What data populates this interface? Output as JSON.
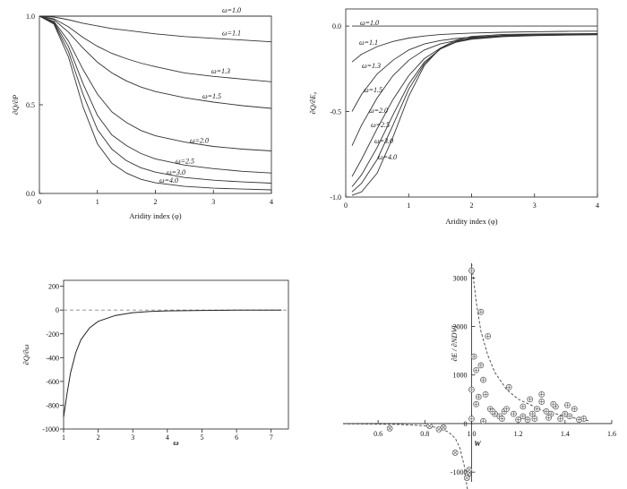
{
  "chart_data": [
    {
      "type": "line",
      "xlabel": "Aridity index (φ)",
      "ylabel": "∂Q/∂P",
      "xlim": [
        0,
        4
      ],
      "ylim": [
        0,
        1.0
      ],
      "x_ticks": [
        "0",
        "1",
        "2",
        "3",
        "4"
      ],
      "y_ticks": [
        "0.0",
        "0.5",
        "1.0"
      ],
      "x": [
        0,
        0.25,
        0.5,
        0.75,
        1.0,
        1.25,
        1.5,
        1.75,
        2.0,
        2.5,
        3.0,
        3.5,
        4.0
      ],
      "series": [
        {
          "name": "ω=1.0",
          "values": [
            1.0,
            1.0,
            1.0,
            1.0,
            1.0,
            1.0,
            1.0,
            1.0,
            1.0,
            1.0,
            1.0,
            1.0,
            1.0
          ]
        },
        {
          "name": "ω=1.1",
          "values": [
            1.0,
            0.995,
            0.98,
            0.96,
            0.945,
            0.93,
            0.92,
            0.91,
            0.9,
            0.885,
            0.875,
            0.865,
            0.855
          ]
        },
        {
          "name": "ω=1.3",
          "values": [
            1.0,
            0.985,
            0.94,
            0.88,
            0.83,
            0.79,
            0.76,
            0.735,
            0.715,
            0.68,
            0.66,
            0.645,
            0.63
          ]
        },
        {
          "name": "ω=1.5",
          "values": [
            1.0,
            0.98,
            0.91,
            0.82,
            0.74,
            0.68,
            0.635,
            0.6,
            0.575,
            0.54,
            0.515,
            0.495,
            0.48
          ]
        },
        {
          "name": "ω=2.0",
          "values": [
            1.0,
            0.97,
            0.86,
            0.7,
            0.56,
            0.46,
            0.4,
            0.355,
            0.325,
            0.29,
            0.265,
            0.25,
            0.24
          ]
        },
        {
          "name": "ω=2.5",
          "values": [
            1.0,
            0.965,
            0.83,
            0.62,
            0.44,
            0.33,
            0.27,
            0.225,
            0.195,
            0.16,
            0.14,
            0.125,
            0.115
          ]
        },
        {
          "name": "ω=3.0",
          "values": [
            1.0,
            0.96,
            0.8,
            0.56,
            0.36,
            0.25,
            0.185,
            0.145,
            0.12,
            0.09,
            0.075,
            0.065,
            0.058
          ]
        },
        {
          "name": "ω=4.0",
          "values": [
            1.0,
            0.955,
            0.77,
            0.49,
            0.28,
            0.17,
            0.115,
            0.08,
            0.06,
            0.04,
            0.03,
            0.025,
            0.02
          ]
        }
      ]
    },
    {
      "type": "line",
      "xlabel": "Aridity index (φ)",
      "ylabel": "∂Q/∂E₀",
      "xlim": [
        0,
        4
      ],
      "ylim": [
        -1.0,
        0.1
      ],
      "x_ticks": [
        "0",
        "1",
        "2",
        "3",
        "4"
      ],
      "y_ticks": [
        "-1.0",
        "-0.5",
        "0.0"
      ],
      "x": [
        0.1,
        0.25,
        0.5,
        0.75,
        1.0,
        1.25,
        1.5,
        1.75,
        2.0,
        2.5,
        3.0,
        3.5,
        4.0
      ],
      "series": [
        {
          "name": "ω=1.0",
          "values": [
            0,
            0,
            0,
            0,
            0,
            0,
            0,
            0,
            0,
            0,
            0,
            0,
            0
          ]
        },
        {
          "name": "ω=1.1",
          "values": [
            -0.21,
            -0.165,
            -0.12,
            -0.09,
            -0.07,
            -0.058,
            -0.05,
            -0.045,
            -0.041,
            -0.036,
            -0.033,
            -0.031,
            -0.03
          ]
        },
        {
          "name": "ω=1.3",
          "values": [
            -0.5,
            -0.4,
            -0.28,
            -0.2,
            -0.14,
            -0.105,
            -0.085,
            -0.073,
            -0.065,
            -0.056,
            -0.051,
            -0.048,
            -0.046
          ]
        },
        {
          "name": "ω=1.5",
          "values": [
            -0.7,
            -0.58,
            -0.42,
            -0.29,
            -0.2,
            -0.14,
            -0.105,
            -0.085,
            -0.073,
            -0.061,
            -0.055,
            -0.052,
            -0.05
          ]
        },
        {
          "name": "ω=2.0",
          "values": [
            -0.88,
            -0.78,
            -0.6,
            -0.43,
            -0.29,
            -0.19,
            -0.13,
            -0.095,
            -0.077,
            -0.062,
            -0.056,
            -0.053,
            -0.051
          ]
        },
        {
          "name": "ω=2.5",
          "values": [
            -0.94,
            -0.87,
            -0.71,
            -0.52,
            -0.34,
            -0.21,
            -0.135,
            -0.095,
            -0.073,
            -0.058,
            -0.053,
            -0.05,
            -0.049
          ]
        },
        {
          "name": "ω=3.0",
          "values": [
            -0.97,
            -0.92,
            -0.78,
            -0.58,
            -0.37,
            -0.22,
            -0.135,
            -0.09,
            -0.068,
            -0.054,
            -0.05,
            -0.048,
            -0.047
          ]
        },
        {
          "name": "ω=4.0",
          "values": [
            -0.99,
            -0.97,
            -0.86,
            -0.65,
            -0.41,
            -0.23,
            -0.13,
            -0.083,
            -0.061,
            -0.049,
            -0.046,
            -0.045,
            -0.044
          ]
        }
      ]
    },
    {
      "type": "line",
      "xlabel": "ω",
      "ylabel": "∂Q/∂ω",
      "xlim": [
        1,
        7.5
      ],
      "ylim": [
        -1000,
        250
      ],
      "x_ticks": [
        "1",
        "2",
        "3",
        "4",
        "5",
        "6",
        "7"
      ],
      "y_ticks": [
        "-1000",
        "-800",
        "-600",
        "-400",
        "-200",
        "0",
        "200"
      ],
      "zero_line": "dashed",
      "x": [
        1.0,
        1.1,
        1.2,
        1.35,
        1.5,
        1.75,
        2.0,
        2.5,
        3.0,
        3.5,
        4.0,
        5.0,
        6.0,
        7.3
      ],
      "values": [
        -900,
        -700,
        -530,
        -360,
        -250,
        -150,
        -95,
        -45,
        -22,
        -12,
        -7,
        -3,
        -1,
        0
      ]
    },
    {
      "type": "scatter",
      "xlabel": "W",
      "ylabel": "∂E / ∂NDVI",
      "xlim": [
        0.45,
        1.6
      ],
      "ylim": [
        -1200,
        3300
      ],
      "x_ticks": [
        "0.6",
        "0.8",
        "1.0",
        "1.2",
        "1.4",
        "1.6"
      ],
      "y_ticks": [
        "-1000",
        "0",
        "1000",
        "2000",
        "3000"
      ],
      "points": [
        [
          1.0,
          3150
        ],
        [
          1.04,
          2300
        ],
        [
          1.01,
          1380
        ],
        [
          1.02,
          1100
        ],
        [
          1.04,
          1200
        ],
        [
          1.07,
          1800
        ],
        [
          1.05,
          900
        ],
        [
          1.06,
          600
        ],
        [
          1.02,
          400
        ],
        [
          1.08,
          300
        ],
        [
          1.1,
          200
        ],
        [
          1.0,
          700
        ],
        [
          1.12,
          150
        ],
        [
          1.14,
          250
        ],
        [
          1.16,
          750
        ],
        [
          1.13,
          100
        ],
        [
          1.18,
          200
        ],
        [
          1.2,
          80
        ],
        [
          1.15,
          300
        ],
        [
          1.22,
          150
        ],
        [
          1.24,
          80
        ],
        [
          1.26,
          200
        ],
        [
          1.28,
          300
        ],
        [
          1.3,
          450
        ],
        [
          1.32,
          250
        ],
        [
          1.34,
          200
        ],
        [
          1.36,
          350
        ],
        [
          1.38,
          100
        ],
        [
          1.4,
          200
        ],
        [
          1.42,
          150
        ],
        [
          1.44,
          300
        ],
        [
          1.46,
          80
        ],
        [
          1.48,
          100
        ],
        [
          1.3,
          600
        ],
        [
          1.35,
          400
        ],
        [
          1.25,
          500
        ],
        [
          1.22,
          350
        ],
        [
          1.27,
          100
        ],
        [
          1.33,
          120
        ],
        [
          1.41,
          380
        ],
        [
          1.03,
          550
        ],
        [
          1.09,
          250
        ],
        [
          1.0,
          100
        ],
        [
          1.05,
          50
        ],
        [
          0.65,
          -100
        ],
        [
          0.82,
          -50
        ],
        [
          0.86,
          -120
        ],
        [
          0.88,
          -80
        ],
        [
          0.93,
          -600
        ],
        [
          0.99,
          -950
        ],
        [
          0.985,
          -1050
        ],
        [
          0.98,
          -1120
        ]
      ],
      "fit_curve": {
        "style": "dashed",
        "x": [
          0.45,
          0.6,
          0.7,
          0.8,
          0.85,
          0.9,
          0.93,
          0.95,
          0.97,
          0.98,
          0.99,
          1.0,
          1.01,
          1.02,
          1.04,
          1.07,
          1.1,
          1.15,
          1.2,
          1.3,
          1.4,
          1.5
        ],
        "values": [
          -5,
          -10,
          -20,
          -45,
          -80,
          -170,
          -300,
          -500,
          -900,
          -1300,
          -1500,
          3300,
          2900,
          2500,
          1900,
          1400,
          1050,
          700,
          500,
          280,
          150,
          60
        ]
      }
    }
  ]
}
